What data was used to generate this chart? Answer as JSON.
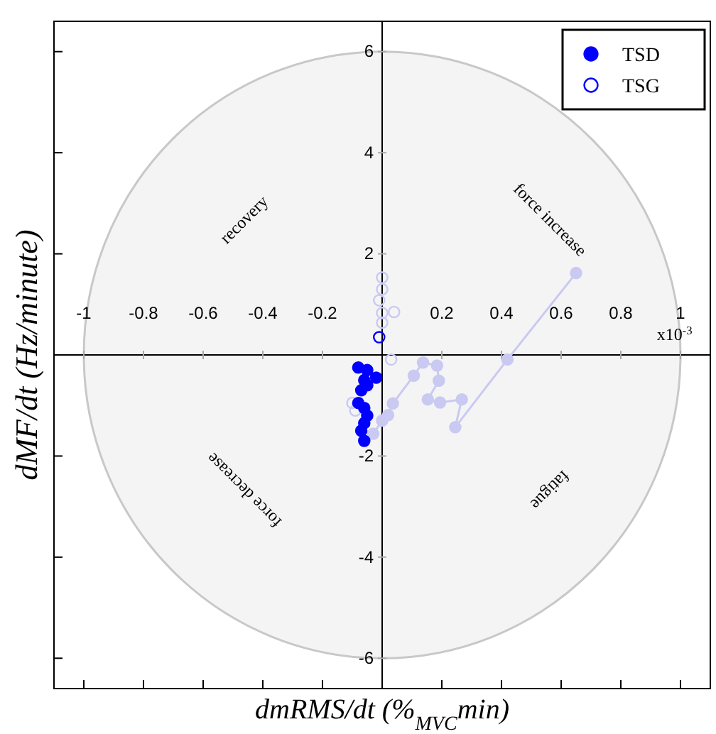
{
  "chart_data": {
    "type": "scatter",
    "xlabel": "dmRMS/dt (%$_{MVC}$min)",
    "ylabel": "dMF/dt (Hz/minute)",
    "xlim": [
      -1.1,
      1.1
    ],
    "ylim": [
      -6.6,
      6.6
    ],
    "xticks": [
      -1,
      -0.8,
      -0.6,
      -0.4,
      -0.2,
      0.2,
      0.4,
      0.6,
      0.8,
      1
    ],
    "yticks": [
      -6,
      -4,
      -2,
      2,
      4,
      6
    ],
    "legend": "top right",
    "marker": "circle",
    "annotations": [
      "recovery",
      "force increase",
      "force decrease",
      "fatigue",
      "x10$^{-3}$"
    ],
    "series": [
      {
        "type": "line",
        "color": "#c9c9f2",
        "x": [
          0.65,
          0.42,
          0.245,
          0.267,
          0.194,
          0.153,
          0.19,
          0.184,
          0.137,
          0.106,
          0.036,
          0.02,
          0.0,
          -0.03
        ],
        "values": [
          1.62,
          -0.09,
          -1.43,
          -0.88,
          -0.94,
          -0.88,
          -0.51,
          -0.21,
          -0.15,
          -0.41,
          -0.96,
          -1.19,
          -1.3,
          -1.56
        ]
      },
      {
        "color": "#c9c9f2",
        "x": [
          0.0,
          0.0,
          -0.01,
          0.0,
          0.04,
          0.0,
          0.03,
          -0.09,
          -0.1
        ],
        "values": [
          1.53,
          1.3,
          1.08,
          0.83,
          0.85,
          0.64,
          -0.09,
          -1.1,
          -0.95
        ]
      },
      {
        "name": "TSD",
        "color": "#0000ff",
        "x": [
          -0.08,
          -0.07,
          -0.05,
          -0.02,
          -0.06,
          -0.05,
          -0.07,
          -0.08,
          -0.06,
          -0.05,
          -0.06,
          -0.07,
          -0.06
        ],
        "values": [
          -0.25,
          null,
          -0.3,
          -0.45,
          -0.5,
          -0.6,
          -0.7,
          -0.95,
          -1.05,
          -1.2,
          -1.35,
          -1.5,
          -1.7
        ]
      },
      {
        "name": "TSG",
        "color": "#0000ff",
        "x": [
          -0.01
        ],
        "values": [
          0.35
        ]
      }
    ]
  }
}
